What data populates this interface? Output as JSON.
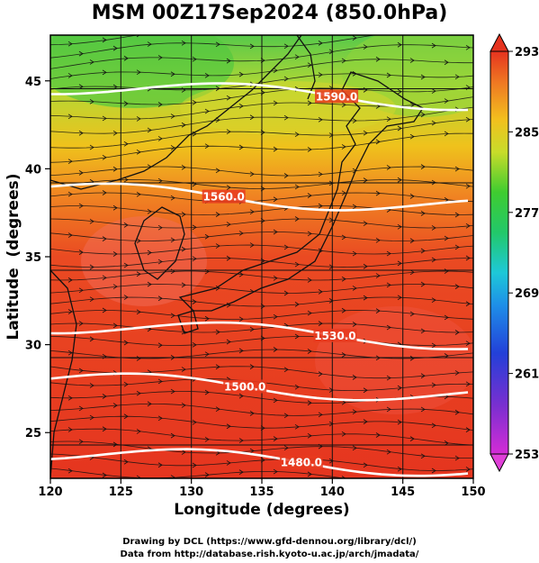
{
  "title": "MSM 00Z17Sep2024 (850.0hPa)",
  "x_axis": {
    "label": "Longitude (degrees)",
    "ticks": [
      120,
      125,
      130,
      135,
      140,
      145,
      150
    ],
    "range": [
      120,
      150
    ]
  },
  "y_axis": {
    "label": "Latitude  (degrees)",
    "ticks": [
      25,
      30,
      35,
      40,
      45
    ],
    "range": [
      22.4,
      47.6
    ]
  },
  "colorbar": {
    "ticks": [
      253,
      261,
      269,
      277,
      285,
      293
    ],
    "range": [
      253,
      293
    ]
  },
  "contours": [
    {
      "label": "1560.0",
      "lat_at_label": 38.4,
      "label_lon": 132.3
    },
    {
      "label": "1530.0",
      "lat_at_label": 30.5,
      "label_lon": 140.2
    },
    {
      "label": "1500.0",
      "lat_at_label": 27.6,
      "label_lon": 133.8
    },
    {
      "label": "1480.0",
      "lat_at_label": 23.3,
      "label_lon": 137.8
    },
    {
      "label": "1590.0",
      "lat_at_label": 44.1,
      "label_lon": 140.3
    }
  ],
  "credits": [
    "Drawing by DCL (https://www.gfd-dennou.org/library/dcl/)",
    "Data from http://database.rish.kyoto-u.ac.jp/arch/jmadata/"
  ],
  "colors": {
    "warm": "#e8391f",
    "mid": "#f5a018",
    "cool": "#6ccb3a",
    "contour": "#ffffff",
    "stream": "#111111"
  }
}
